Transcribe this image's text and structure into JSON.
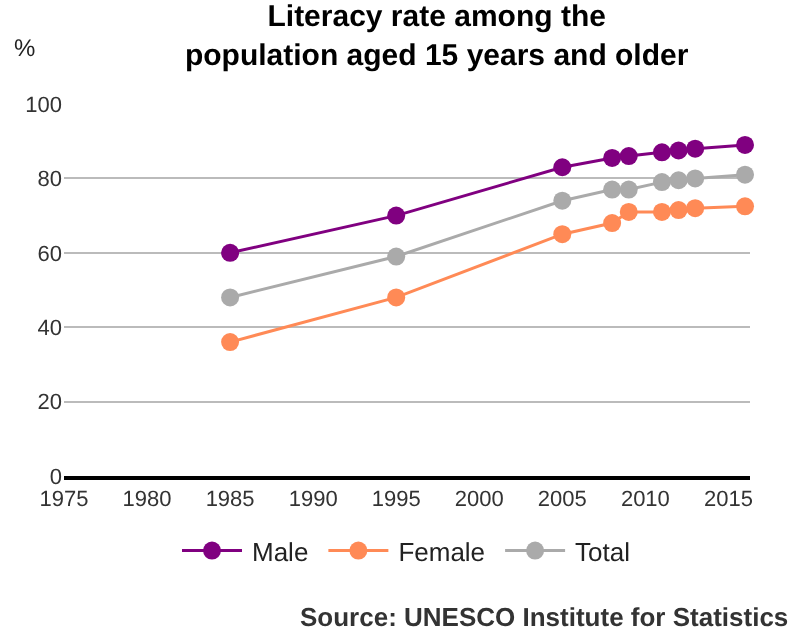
{
  "chart_data": {
    "type": "line",
    "title": "Literacy rate among the\npopulation aged 15 years and older",
    "ylabel": "%",
    "x": [
      1985,
      1995,
      2005,
      2008,
      2009,
      2011,
      2012,
      2013,
      2016
    ],
    "series": [
      {
        "name": "Male",
        "color": "#800080",
        "values": [
          60,
          70,
          83,
          85.5,
          86,
          87,
          87.5,
          88,
          89
        ]
      },
      {
        "name": "Female",
        "color": "#ff8a56",
        "values": [
          36,
          48,
          65,
          68,
          71,
          71,
          71.5,
          72,
          72.5
        ]
      },
      {
        "name": "Total",
        "color": "#aaaaaa",
        "values": [
          48,
          59,
          74,
          77,
          77,
          79,
          79.5,
          80,
          81
        ]
      }
    ],
    "xlim": [
      1975,
      2016.3
    ],
    "xticks": [
      1975,
      1980,
      1985,
      1990,
      1995,
      2000,
      2005,
      2010,
      2015
    ],
    "ylim": [
      0,
      100
    ],
    "yticks": [
      0,
      20,
      40,
      60,
      80,
      100
    ],
    "grid": "y",
    "legend": "bottom",
    "marker": "circle",
    "line_style": "solid",
    "annotations": [
      "Source: UNESCO Institute for Statistics"
    ]
  }
}
